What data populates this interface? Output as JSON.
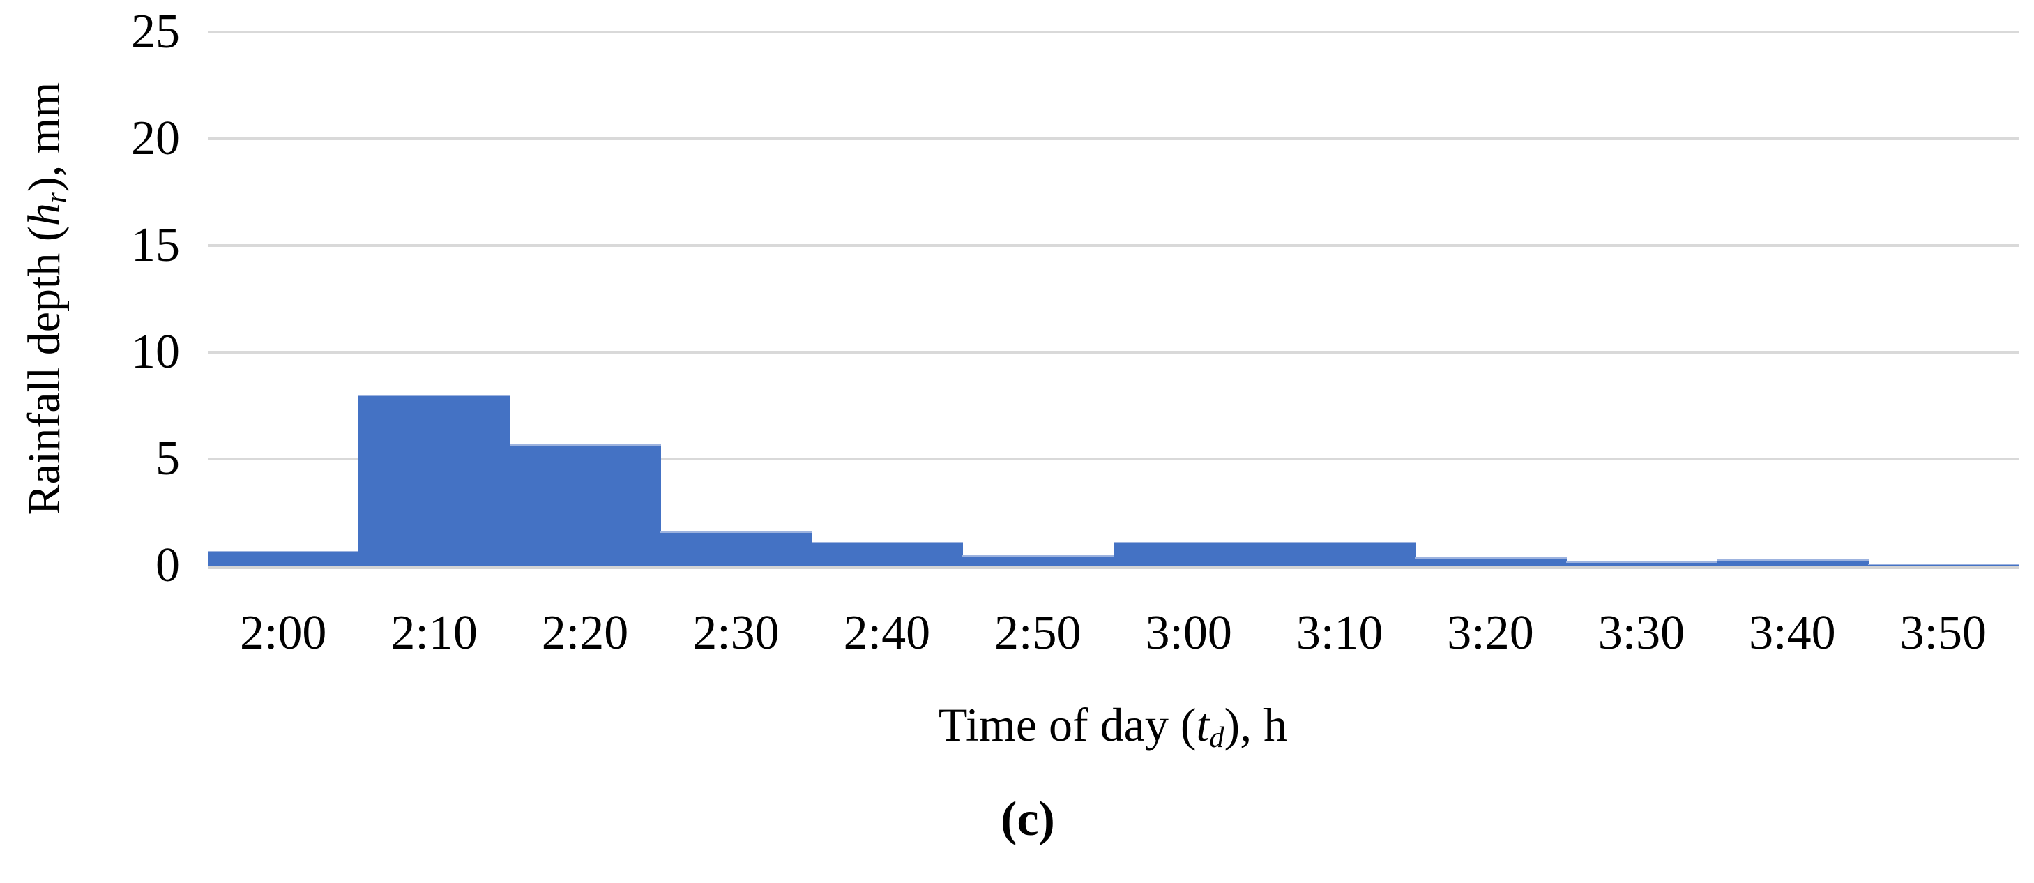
{
  "figure": {
    "caption": "(c)"
  },
  "chart_data": {
    "type": "bar",
    "title": "",
    "categories": [
      "2:00",
      "2:10",
      "2:20",
      "2:30",
      "2:40",
      "2:50",
      "3:00",
      "3:10",
      "3:20",
      "3:30",
      "3:40",
      "3:50"
    ],
    "values": [
      0.7,
      8.0,
      5.7,
      1.6,
      1.1,
      0.5,
      1.1,
      1.1,
      0.4,
      0.2,
      0.3,
      0.1
    ],
    "xlabel": "Time of day (td), h",
    "ylabel": "Rainfall depth (hr), mm",
    "xlabel_rich": [
      {
        "t": "Time of day ("
      },
      {
        "t": "t",
        "i": true
      },
      {
        "t": "d",
        "i": true,
        "sub": true
      },
      {
        "t": "), h"
      }
    ],
    "ylabel_rich": [
      {
        "t": "Rainfall depth ("
      },
      {
        "t": "h",
        "i": true
      },
      {
        "t": "r",
        "i": true,
        "sub": true
      },
      {
        "t": "), mm"
      }
    ],
    "ylim": [
      0,
      25
    ],
    "yticks": [
      0,
      5,
      10,
      15,
      20,
      25
    ],
    "grid": "horizontal",
    "legend": "none",
    "bar_gap": 0,
    "bar_color": "#4472C4",
    "gridline_color": "#D9D9D9",
    "axisline_color": "#D4D4D4"
  }
}
